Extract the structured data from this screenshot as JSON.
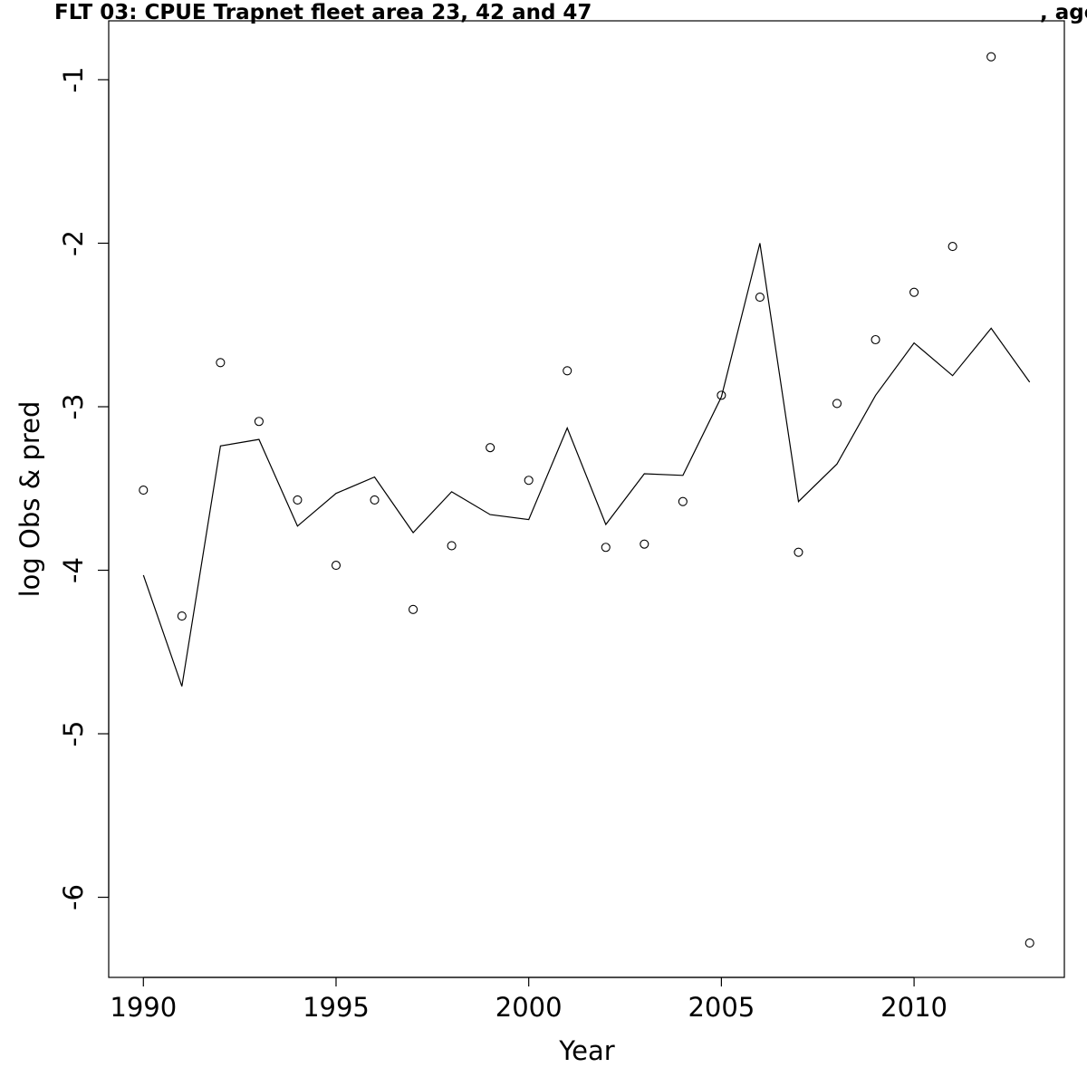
{
  "chart_data": {
    "type": "line",
    "title": "FLT 03: CPUE Trapnet fleet area 23, 42 and 47",
    "title_suffix": ", age",
    "xlabel": "Year",
    "ylabel": "log Obs & pred",
    "xlim": [
      1989.1,
      2013.9
    ],
    "ylim": [
      -6.49,
      -0.64
    ],
    "x_ticks": [
      1990,
      1995,
      2000,
      2005,
      2010
    ],
    "y_ticks": [
      -1,
      -2,
      -3,
      -4,
      -5,
      -6
    ],
    "grid": false,
    "series": [
      {
        "style": "points",
        "x": [
          1990,
          1991,
          1992,
          1993,
          1994,
          1995,
          1996,
          1997,
          1998,
          1999,
          2000,
          2001,
          2002,
          2003,
          2004,
          2005,
          2006,
          2007,
          2008,
          2009,
          2010,
          2011,
          2012,
          2013
        ],
        "values": [
          -3.51,
          -4.28,
          -2.73,
          -3.09,
          -3.57,
          -3.97,
          -3.57,
          -4.24,
          -3.85,
          -3.25,
          -3.45,
          -2.78,
          -3.86,
          -3.84,
          -3.58,
          -2.93,
          -2.33,
          -3.89,
          -2.98,
          -2.59,
          -2.3,
          -2.02,
          -0.86,
          -6.28
        ]
      },
      {
        "style": "line",
        "x": [
          1990,
          1991,
          1992,
          1993,
          1994,
          1995,
          1996,
          1997,
          1998,
          1999,
          2000,
          2001,
          2002,
          2003,
          2004,
          2005,
          2006,
          2007,
          2008,
          2009,
          2010,
          2011,
          2012,
          2013
        ],
        "values": [
          -4.03,
          -4.71,
          -3.24,
          -3.2,
          -3.73,
          -3.53,
          -3.43,
          -3.77,
          -3.52,
          -3.66,
          -3.69,
          -3.13,
          -3.72,
          -3.41,
          -3.42,
          -2.94,
          -2.0,
          -3.58,
          -3.35,
          -2.93,
          -2.61,
          -2.81,
          -2.52,
          -2.85
        ]
      }
    ]
  }
}
